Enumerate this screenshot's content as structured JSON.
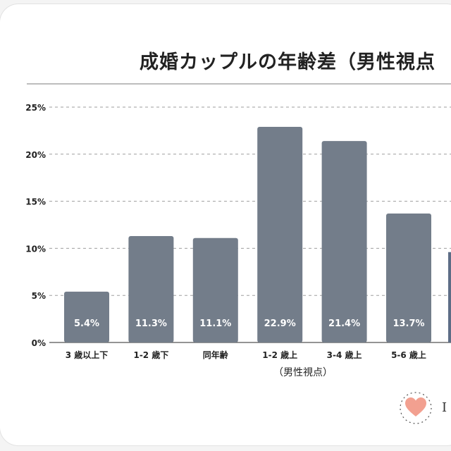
{
  "title": "成婚カップルの年齢差（男性視点",
  "colors": {
    "bar": "#737d8a",
    "bar_partial": "#5d6d86",
    "grid": "#9e9e9e",
    "text": "#222222",
    "label": "#ffffff",
    "heart": "#f2a090"
  },
  "logo": {
    "icon": "heart-icon",
    "letter": "I"
  },
  "chart_data": {
    "type": "bar",
    "title": "成婚カップルの年齢差（男性視点",
    "xlabel": "（男性視点）",
    "ylabel": "",
    "ylim": [
      0,
      25
    ],
    "yticks": [
      "0%",
      "5%",
      "10%",
      "15%",
      "20%",
      "25%"
    ],
    "categories": [
      "3 歳以上下",
      "1-2 歳下",
      "同年齢",
      "1-2 歳上",
      "3-4 歳上",
      "5-6 歳上"
    ],
    "values": [
      5.4,
      11.3,
      11.1,
      22.9,
      21.4,
      13.7
    ],
    "value_labels": [
      "5.4%",
      "11.3%",
      "11.1%",
      "22.9%",
      "21.4%",
      "13.7%"
    ],
    "partial_next_value": 9.6,
    "grid": true
  }
}
